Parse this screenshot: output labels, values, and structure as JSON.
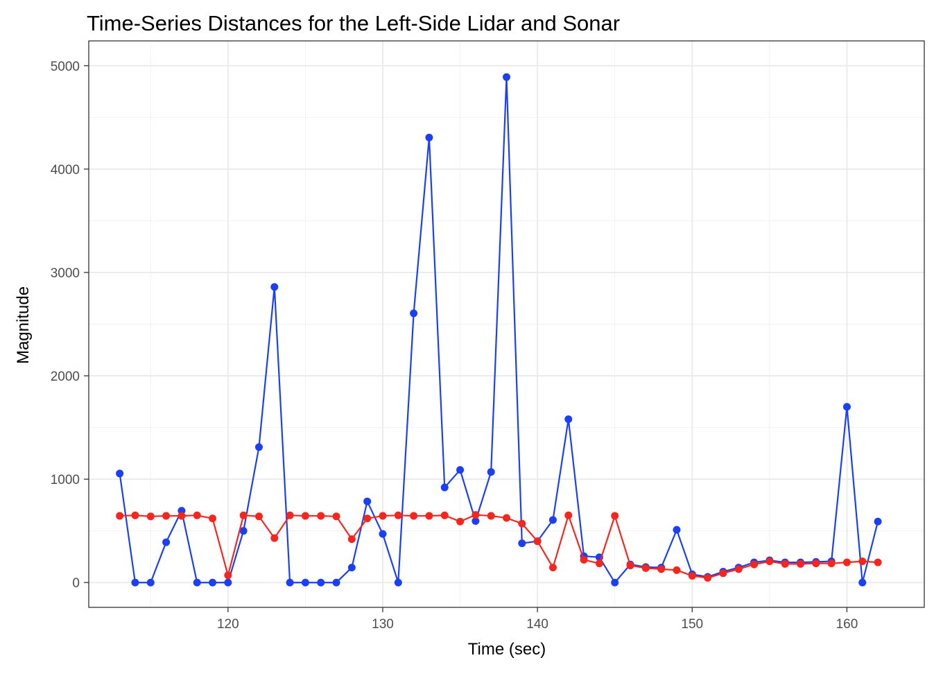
{
  "chart_data": {
    "type": "line",
    "title": "Time-Series Distances for the Left-Side Lidar and Sonar",
    "xlabel": "Time (sec)",
    "ylabel": "Magnitude",
    "xlim": [
      111,
      165
    ],
    "ylim": [
      -240,
      5240
    ],
    "x_ticks": [
      120,
      130,
      140,
      150,
      160
    ],
    "y_ticks": [
      0,
      1000,
      2000,
      3000,
      4000,
      5000
    ],
    "grid": true,
    "legend": "none",
    "x": [
      113,
      114,
      115,
      116,
      117,
      118,
      119,
      120,
      121,
      122,
      123,
      124,
      125,
      126,
      127,
      128,
      129,
      130,
      131,
      132,
      133,
      134,
      135,
      136,
      137,
      138,
      139,
      140,
      141,
      142,
      143,
      144,
      145,
      146,
      147,
      148,
      149,
      150,
      151,
      152,
      153,
      154,
      155,
      156,
      157,
      158,
      159,
      160,
      161,
      162
    ],
    "series": [
      {
        "color": "#1a3ff5",
        "values": [
          1055,
          0,
          0,
          390,
          695,
          0,
          0,
          0,
          500,
          1310,
          2860,
          0,
          0,
          0,
          0,
          145,
          785,
          470,
          0,
          2605,
          4305,
          920,
          1090,
          595,
          1070,
          4890,
          380,
          400,
          605,
          1580,
          255,
          245,
          0,
          175,
          150,
          145,
          510,
          80,
          55,
          105,
          145,
          195,
          215,
          195,
          195,
          200,
          205,
          1700,
          0,
          590
        ]
      },
      {
        "color": "#f5261e",
        "values": [
          645,
          650,
          640,
          645,
          645,
          650,
          620,
          70,
          650,
          640,
          430,
          650,
          645,
          645,
          640,
          420,
          620,
          645,
          650,
          645,
          645,
          650,
          590,
          655,
          645,
          625,
          570,
          400,
          145,
          650,
          220,
          185,
          645,
          165,
          140,
          130,
          120,
          65,
          45,
          90,
          130,
          175,
          205,
          180,
          180,
          185,
          185,
          195,
          205,
          195
        ]
      }
    ]
  }
}
